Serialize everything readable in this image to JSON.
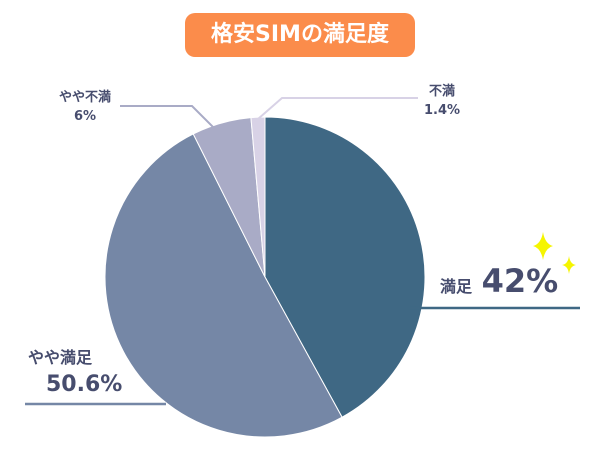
{
  "chart_data": {
    "type": "pie",
    "title": "格安SIMの満足度",
    "start": "top",
    "direction": "clockwise",
    "slices": [
      {
        "label": "満足",
        "value": 42,
        "value_label": "42%",
        "color": "#3f6884"
      },
      {
        "label": "やや満足",
        "value": 50.6,
        "value_label": "50.6%",
        "color": "#7587a6"
      },
      {
        "label": "やや不満",
        "value": 6,
        "value_label": "6%",
        "color": "#a9abc6"
      },
      {
        "label": "不満",
        "value": 1.4,
        "value_label": "1.4%",
        "color": "#d8d2e6"
      }
    ],
    "title_color": "#fb8c4b",
    "text_color": "#474d6e",
    "sparkle_color": "#f5f500"
  }
}
